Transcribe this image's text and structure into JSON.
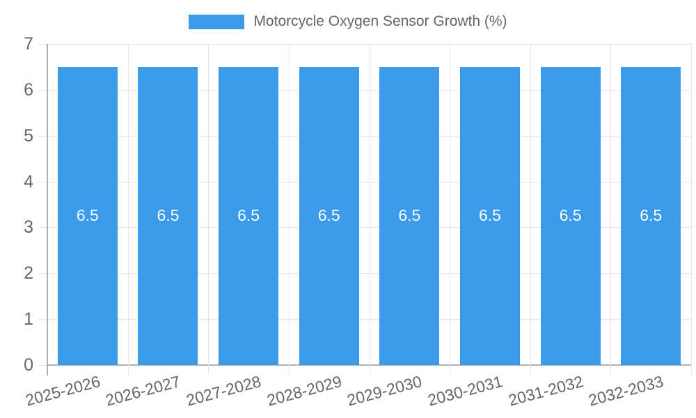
{
  "legend": {
    "label": "Motorcycle Oxygen Sensor Growth (%)"
  },
  "chart_data": {
    "type": "bar",
    "title": "",
    "legend_position": "top-center",
    "categories": [
      "2025-2026",
      "2026-2027",
      "2027-2028",
      "2028-2029",
      "2029-2030",
      "2030-2031",
      "2031-2032",
      "2032-2033"
    ],
    "series": [
      {
        "name": "Motorcycle Oxygen Sensor Growth (%)",
        "values": [
          6.5,
          6.5,
          6.5,
          6.5,
          6.5,
          6.5,
          6.5,
          6.5
        ]
      }
    ],
    "bar_value_labels": [
      "6.5",
      "6.5",
      "6.5",
      "6.5",
      "6.5",
      "6.5",
      "6.5",
      "6.5"
    ],
    "xlabel": "",
    "ylabel": "",
    "ylim": [
      0,
      7
    ],
    "yticks": [
      0,
      1,
      2,
      3,
      4,
      5,
      6,
      7
    ],
    "grid": true,
    "x_label_rotation_deg": -15,
    "colors": {
      "bar": "#3B9AEA",
      "bar_label": "#ffffff",
      "axis_text": "#666666",
      "grid": "#e6e6e6",
      "axis_line": "#b0b0b0",
      "background": "#ffffff"
    }
  }
}
